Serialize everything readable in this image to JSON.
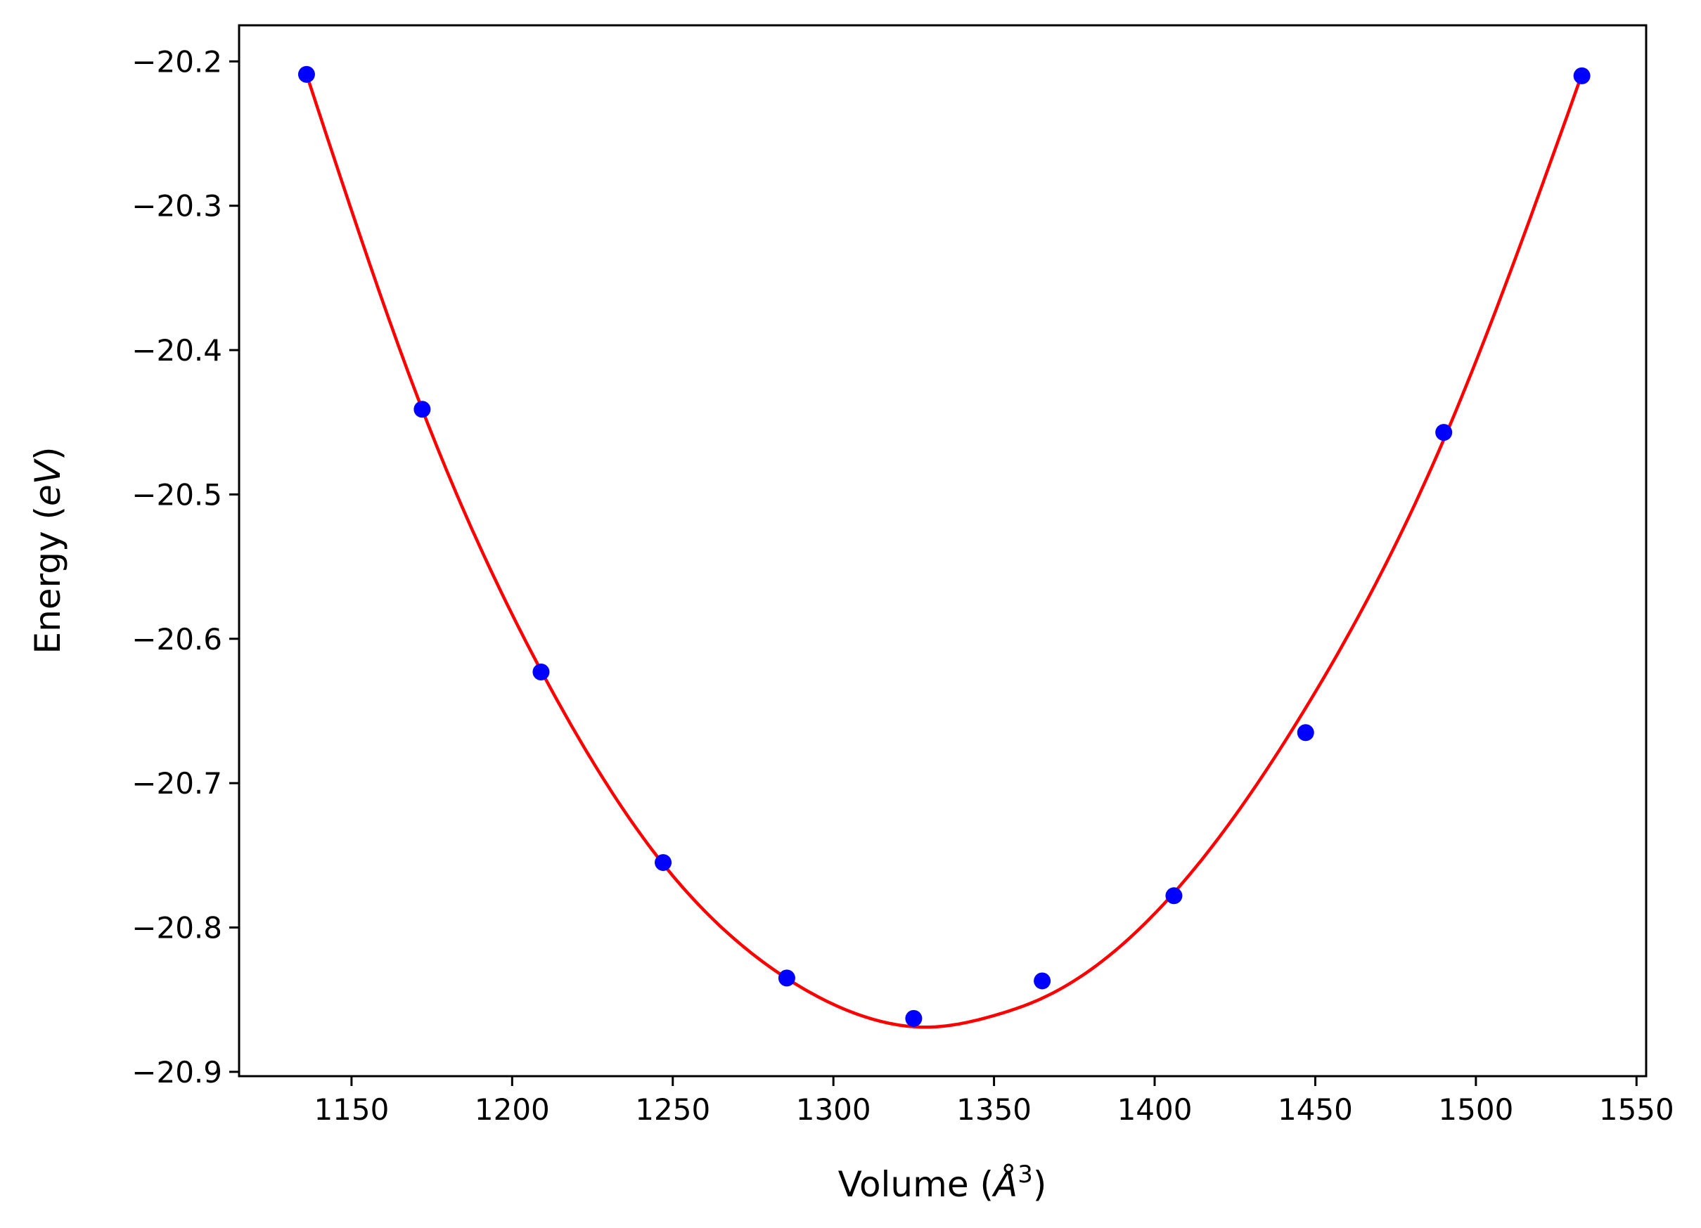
{
  "chart_data": {
    "type": "scatter",
    "title": "",
    "xlabel_text": "Volume (",
    "xlabel_symbol": "Å",
    "xlabel_exp": "3",
    "xlabel_close": ")",
    "ylabel_text": "Energy (",
    "ylabel_unit": "eV",
    "ylabel_close": ")",
    "xlim": [
      1115,
      1553
    ],
    "ylim": [
      -20.903,
      -20.175
    ],
    "x_ticks": [
      1150,
      1200,
      1250,
      1300,
      1350,
      1400,
      1450,
      1500,
      1550
    ],
    "y_ticks": [
      -20.2,
      -20.3,
      -20.4,
      -20.5,
      -20.6,
      -20.7,
      -20.8,
      -20.9
    ],
    "x_tick_labels": [
      "1150",
      "1200",
      "1250",
      "1300",
      "1350",
      "1400",
      "1450",
      "1500",
      "1550"
    ],
    "y_tick_labels": [
      "−20.2",
      "−20.3",
      "−20.4",
      "−20.5",
      "−20.6",
      "−20.7",
      "−20.8",
      "−20.9"
    ],
    "grid": false,
    "legend": "none",
    "series": [
      {
        "kind": "points",
        "color": "#0000ff",
        "x": [
          1136,
          1172,
          1209,
          1247,
          1285.5,
          1325,
          1365,
          1406,
          1447,
          1490,
          1533
        ],
        "y": [
          -20.209,
          -20.441,
          -20.623,
          -20.755,
          -20.835,
          -20.863,
          -20.837,
          -20.778,
          -20.665,
          -20.457,
          -20.21
        ]
      },
      {
        "kind": "fit-curve",
        "color": "#ff0000",
        "x": [
          1136,
          1172,
          1209,
          1247,
          1286,
          1310,
          1330,
          1350,
          1365,
          1406,
          1447,
          1490,
          1533
        ],
        "y": [
          -20.209,
          -20.441,
          -20.622,
          -20.756,
          -20.836,
          -20.862,
          -20.869,
          -20.861,
          -20.849,
          -20.776,
          -20.648,
          -20.462,
          -20.209
        ]
      }
    ]
  }
}
